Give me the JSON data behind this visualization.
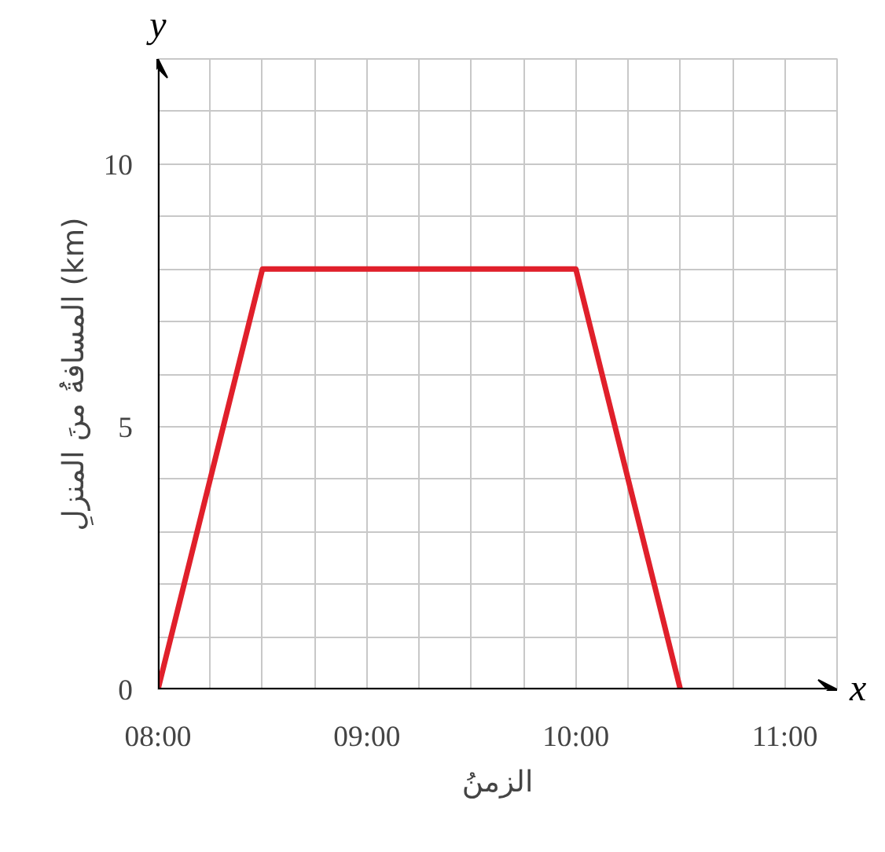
{
  "chart_data": {
    "type": "line",
    "xlabel": "الزمنُ",
    "ylabel": "المسافةُ منَ المنزلِ (km)",
    "annotations": [
      "x",
      "y"
    ],
    "x": [
      8,
      8.5,
      10,
      10.5
    ],
    "series": [
      {
        "color": "#e0202b",
        "values": [
          0,
          8,
          8,
          0
        ]
      }
    ],
    "xlim": [
      8,
      11.25
    ],
    "xticks": [
      {
        "value": 8,
        "label": "08:00"
      },
      {
        "value": 8.25,
        "label": null
      },
      {
        "value": 8.5,
        "label": null
      },
      {
        "value": 8.75,
        "label": null
      },
      {
        "value": 9,
        "label": "09:00"
      },
      {
        "value": 9.25,
        "label": null
      },
      {
        "value": 9.5,
        "label": null
      },
      {
        "value": 9.75,
        "label": null
      },
      {
        "value": 10,
        "label": "10:00"
      },
      {
        "value": 10.25,
        "label": null
      },
      {
        "value": 10.5,
        "label": null
      },
      {
        "value": 10.75,
        "label": null
      },
      {
        "value": 11,
        "label": "11:00"
      }
    ],
    "ylim": [
      0,
      12
    ],
    "yticks": [
      0,
      {
        "value": 1,
        "label": null
      },
      {
        "value": 2,
        "label": null
      },
      {
        "value": 3,
        "label": null
      },
      {
        "value": 4,
        "label": null
      },
      5,
      {
        "value": 6,
        "label": null
      },
      {
        "value": 7,
        "label": null
      },
      {
        "value": 8,
        "label": null
      },
      {
        "value": 9,
        "label": null
      },
      10,
      {
        "value": 11,
        "label": null
      }
    ],
    "grid": true,
    "marker": "none",
    "line_style": "solid"
  }
}
